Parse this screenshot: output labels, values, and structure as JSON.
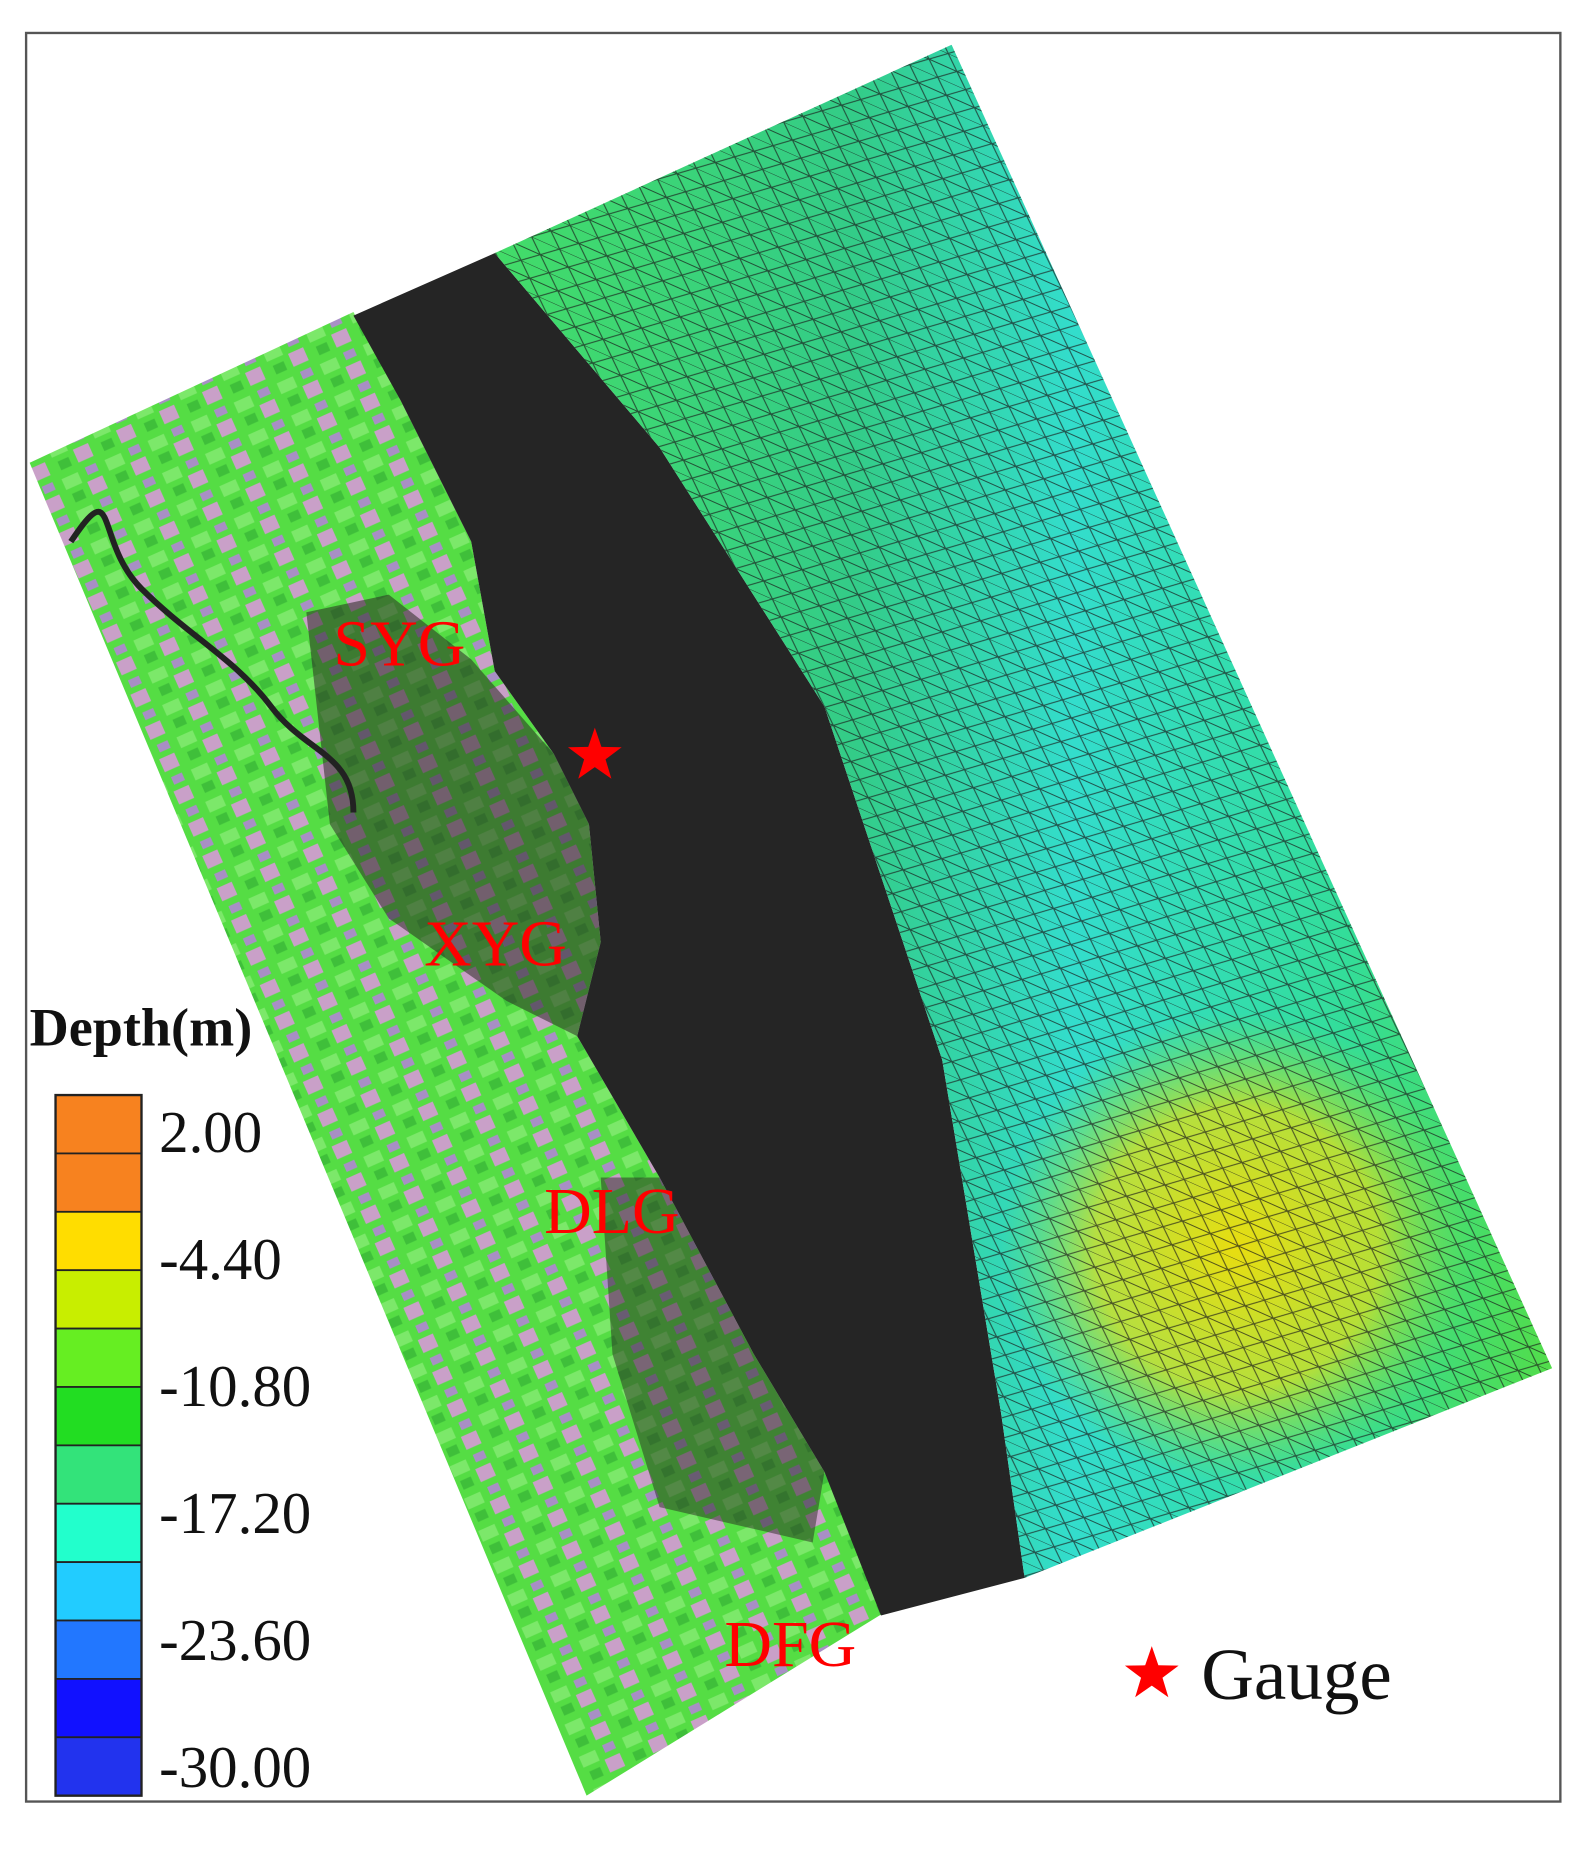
{
  "map": {
    "places": [
      "SYG",
      "XYG",
      "DLG",
      "DFG"
    ],
    "gauge_label": "Gauge"
  },
  "legend": {
    "title": "Depth(m)",
    "range": [
      -31.5,
      3.8
    ],
    "ticks": [
      {
        "value": 2,
        "label": "2.00"
      },
      {
        "value": -4.4,
        "label": "-4.40"
      },
      {
        "value": -10.8,
        "label": "-10.80"
      },
      {
        "value": -17.2,
        "label": "-17.20"
      },
      {
        "value": -23.6,
        "label": "-23.60"
      },
      {
        "value": -30,
        "label": "-30.00"
      }
    ],
    "colors": [
      "#f7821f",
      "#f7821f",
      "#ffdd00",
      "#c8ee00",
      "#66ee22",
      "#22dd22",
      "#33e37a",
      "#22ffcc",
      "#22ccff",
      "#2277ff",
      "#1111ff",
      "#2233ee"
    ]
  }
}
